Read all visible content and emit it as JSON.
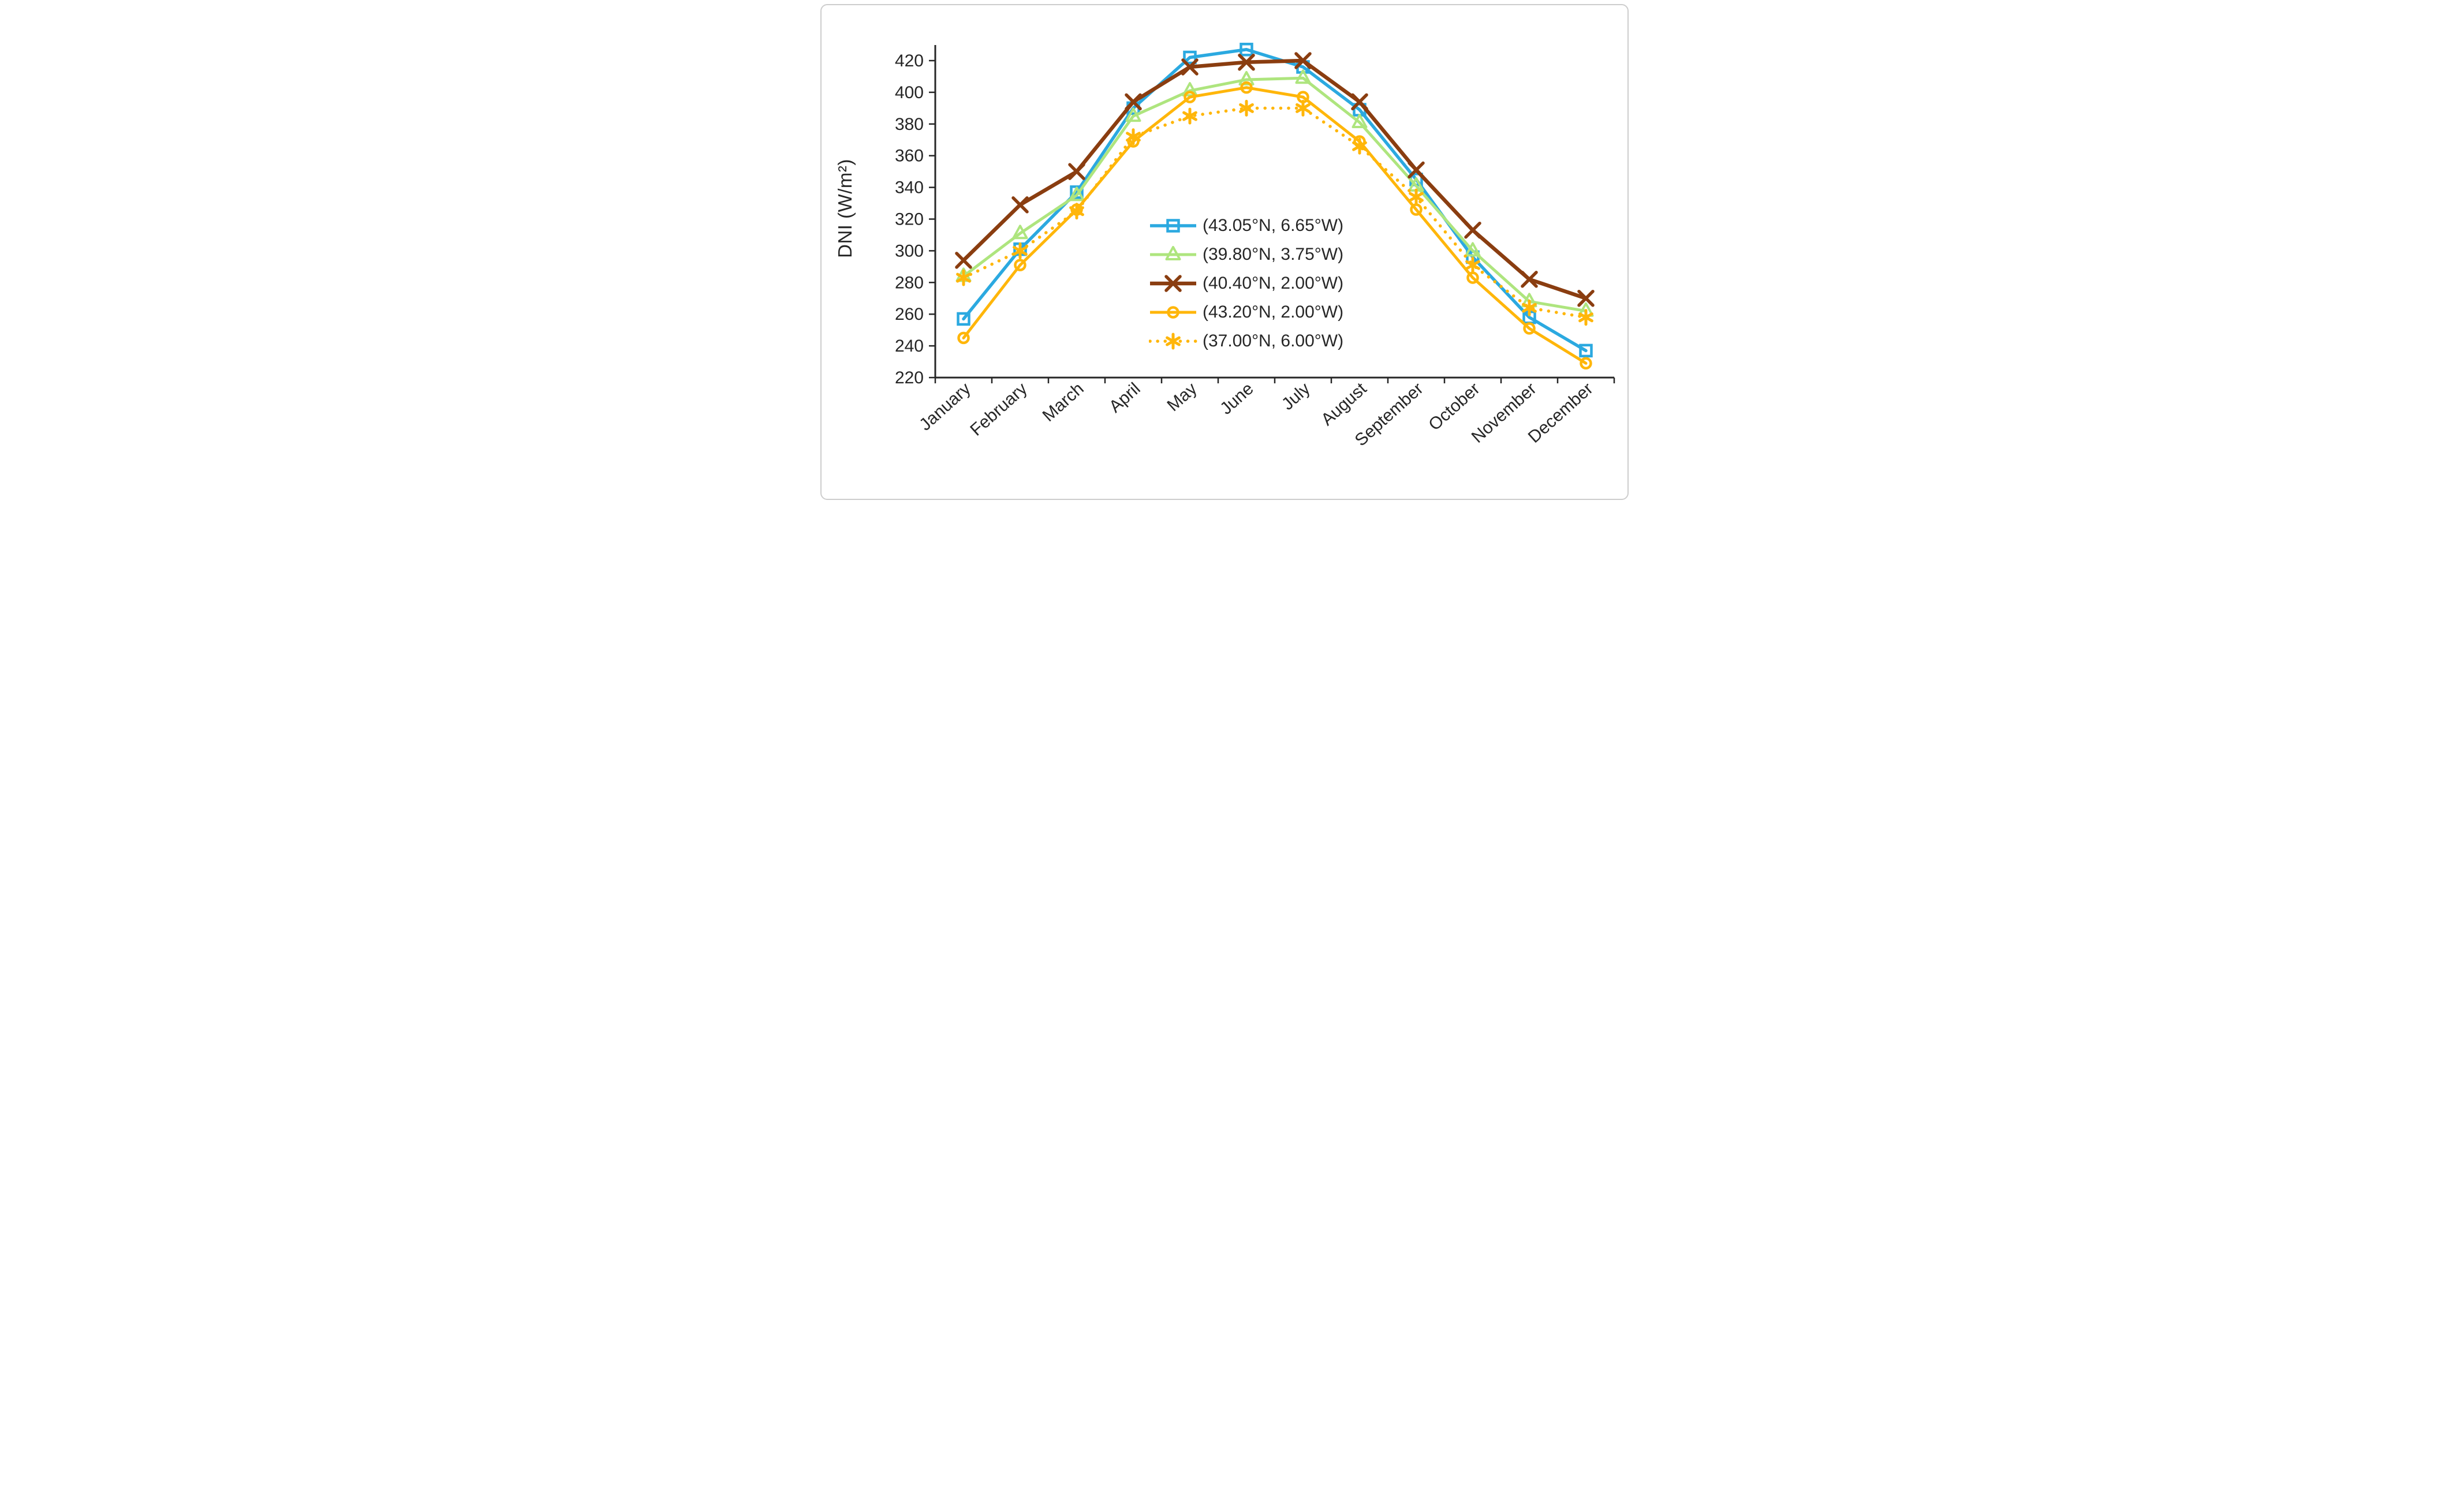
{
  "figure": {
    "background": "#ffffff",
    "border_color": "#cdcdcd",
    "text_color": "#262626",
    "axis_color": "#262626"
  },
  "chart_data": {
    "type": "line",
    "title": "",
    "xlabel": "",
    "ylabel": "DNI (W/m²)",
    "ylim": [
      220,
      420
    ],
    "ytick_step": 20,
    "grid": false,
    "legend_position": "inside-center-right",
    "x_tick_label_angle": -42,
    "categories": [
      "January",
      "February",
      "March",
      "April",
      "May",
      "June",
      "July",
      "August",
      "September",
      "October",
      "November",
      "December"
    ],
    "series": [
      {
        "name": "(43.05°N, 6.65°W)",
        "color": "#2BA9E0",
        "marker": "square",
        "line": "solid",
        "values": [
          257,
          301,
          337,
          390,
          422,
          427,
          416,
          389,
          345,
          296,
          258,
          237
        ]
      },
      {
        "name": "(39.80°N, 3.75°W)",
        "color": "#AEE57E",
        "marker": "triangle",
        "line": "solid",
        "values": [
          284,
          311,
          335,
          385,
          401,
          408,
          409,
          381,
          341,
          300,
          268,
          262
        ]
      },
      {
        "name": "(40.40°N, 2.00°W)",
        "color": "#8A3D10",
        "marker": "x",
        "line": "solid",
        "values": [
          294,
          329,
          350,
          394,
          416,
          419,
          420,
          394,
          351,
          313,
          282,
          270
        ]
      },
      {
        "name": "(43.20°N, 2.00°W)",
        "color": "#FFB60A",
        "marker": "circle",
        "line": "solid",
        "values": [
          245,
          291,
          326,
          369,
          397,
          403,
          397,
          369,
          326,
          283,
          251,
          229
        ]
      },
      {
        "name": "(37.00°N, 6.00°W)",
        "color": "#FFB60A",
        "marker": "asterisk",
        "line": "dotted",
        "values": [
          283,
          300,
          325,
          372,
          385,
          390,
          390,
          366,
          334,
          291,
          264,
          258
        ]
      }
    ]
  }
}
